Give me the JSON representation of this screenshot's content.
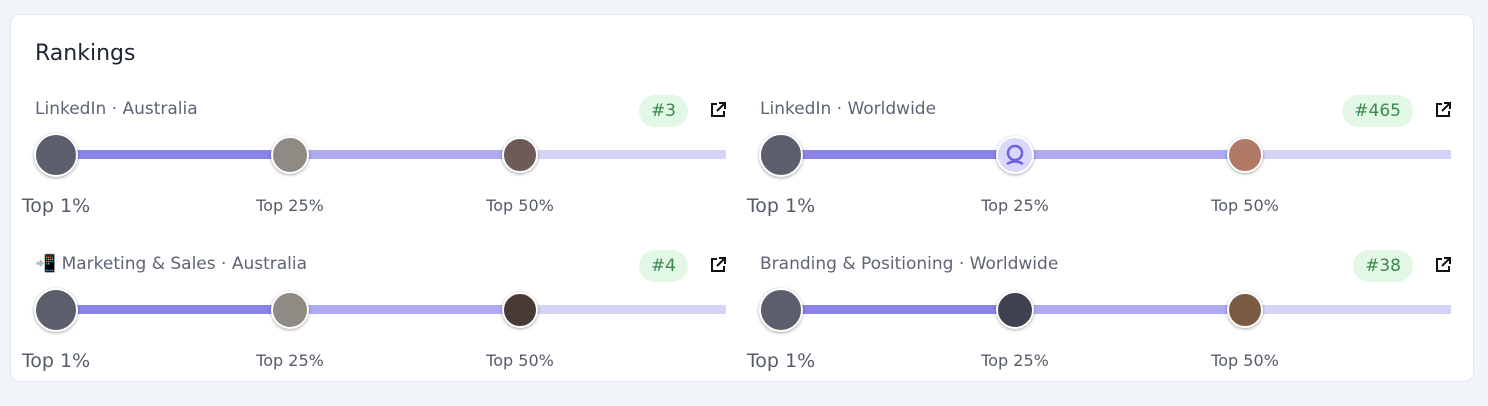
{
  "title": "Rankings",
  "rankings": [
    {
      "label": "LinkedIn · Australia",
      "rank": "#3",
      "tiers": [
        "Top 1%",
        "Top 25%",
        "Top 50%"
      ]
    },
    {
      "label": "LinkedIn · Worldwide",
      "rank": "#465",
      "tiers": [
        "Top 1%",
        "Top 25%",
        "Top 50%"
      ]
    },
    {
      "label": "📲 Marketing & Sales · Australia",
      "rank": "#4",
      "tiers": [
        "Top 1%",
        "Top 25%",
        "Top 50%"
      ]
    },
    {
      "label": "Branding & Positioning · Worldwide",
      "rank": "#38",
      "tiers": [
        "Top 1%",
        "Top 25%",
        "Top 50%"
      ]
    }
  ]
}
